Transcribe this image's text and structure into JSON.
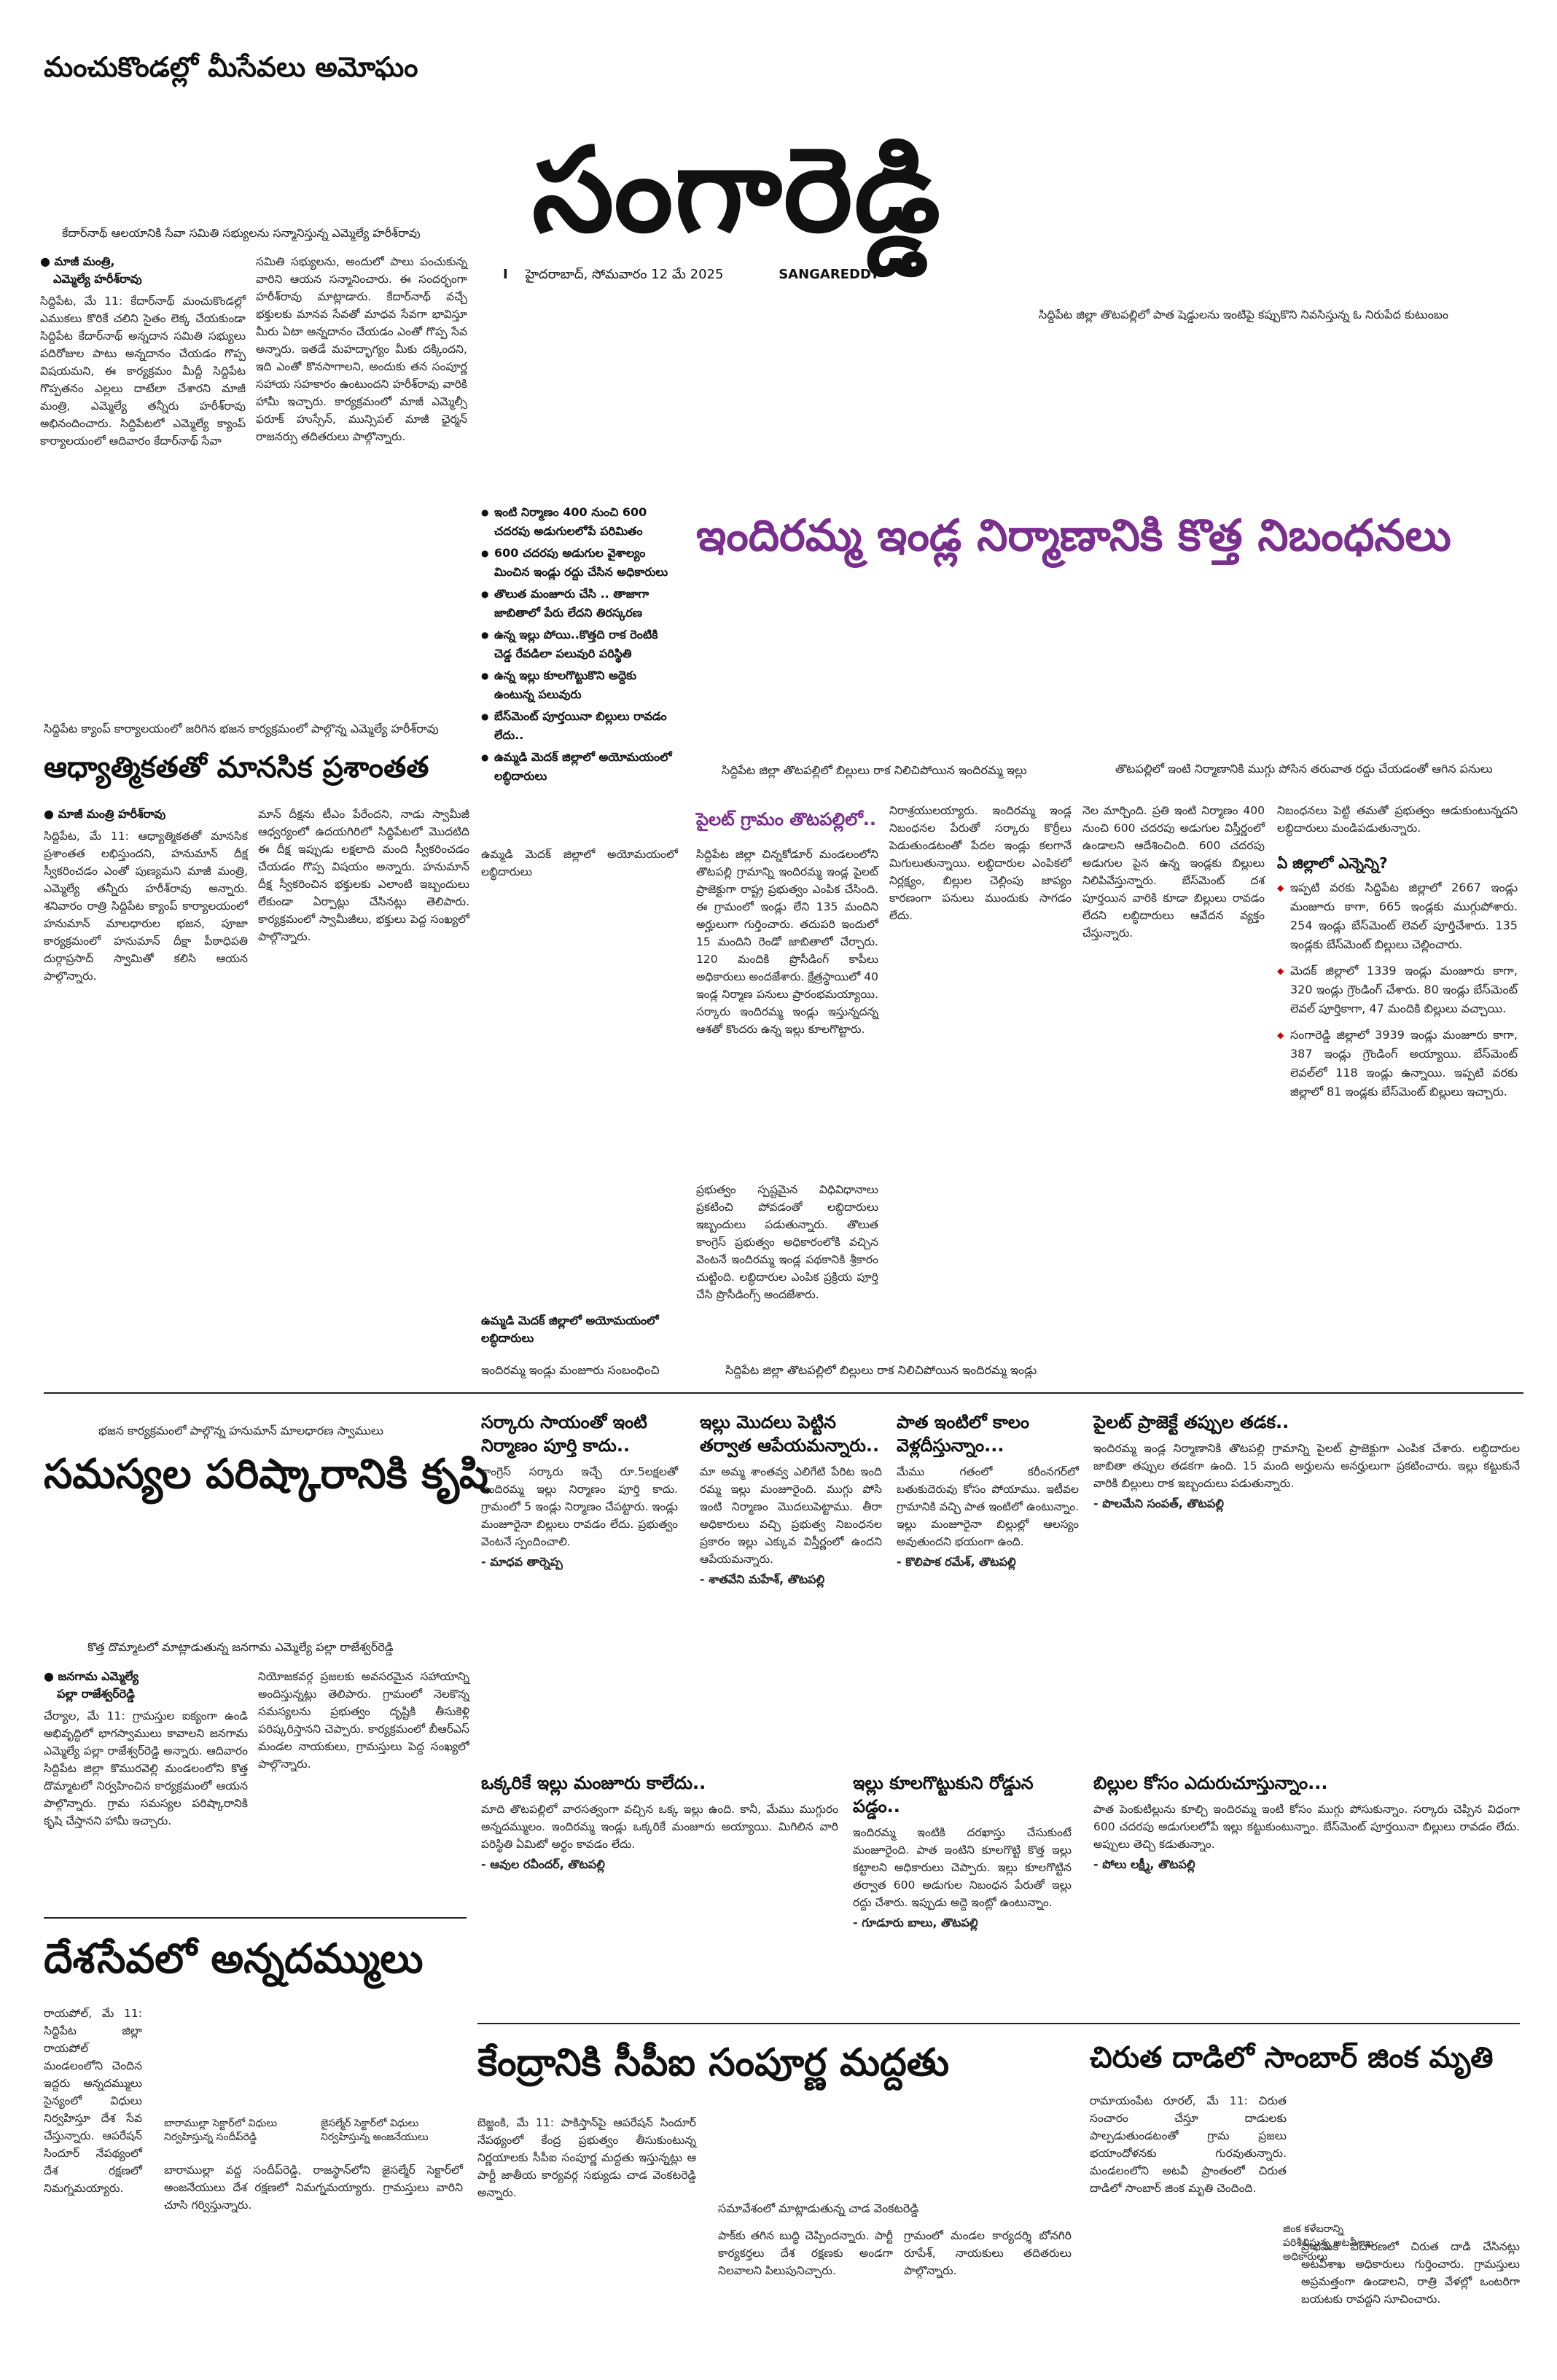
{
  "top_left_headline": "మంచుకొండల్లో మీసేవలు అమోఘం",
  "masthead": "సంగారెడ్డి",
  "dateline": {
    "marker": "I",
    "date": "హైదరాబాద్, సోమవారం 12 మే 2025",
    "edition": "SANGAREDDY"
  },
  "photo_caption_top_right": "సిద్దిపేట జిల్లా తొటపల్లిలో పాత షెడ్డులను ఇంటిపై కప్పుకొని నివసిస్తున్న ఓ నిరుపేద కుటుంబం",
  "story1": {
    "photo_caption": "కేదార్‌నాథ్ ఆలయానికి సేవా సమితి సభ్యులను సన్మానిస్తున్న ఎమ్మెల్యే హరీశ్‌రావు",
    "byline1": "మాజీ మంత్రి,",
    "byline2": "ఎమ్మెల్యే హరీశ్‌రావు",
    "col1": "సిద్దిపేట, మే 11: కేదార్‌నాథ్ మంచుకొండల్లో ఎముకలు కొరికే చలిని సైతం లెక్క చేయకుండా సిద్దిపేట కేదార్‌నాథ్ అన్నదాన సమితి సభ్యులు పదిరోజుల పాటు అన్నదానం చేయడం గొప్ప విషయమని, ఈ కార్యక్రమం మీద్దీ సిద్దిపేట గొప్పతనం ఎల్లలు దాటేలా చేశారని మాజీ మంత్రి, ఎమ్మెల్యే తన్నీరు హరీశ్‌రావు అభినందించారు. సిద్దిపేటలో ఎమ్మెల్యే క్యాంప్ కార్యాలయంలో ఆదివారం కేదార్‌నాథ్ సేవా",
    "col2": "సమితి సభ్యులను, అందులో పాలు పంచుకున్న వారిని ఆయన సన్మానించారు. ఈ సందర్భంగా హరీశ్‌రావు మాట్లాడారు. కేదార్‌నాథ్ వచ్చే భక్తులకు మానవ సేవతో మాధవ సేవగా భావిస్తూ మీరు ఏటా అన్నదానం చేయడం ఎంతో గొప్ప సేవ అన్నారు. ఇతడే మహద్భాగ్యం మీకు దక్కిందని, ఇది ఎంతో కొనసాగాలని, అందుకు తన సంపూర్ణ సహాయ సహకారం ఉంటుందని హరీశ్‌రావు వారికి హామీ ఇచ్చారు. కార్యక్రమంలో మాజీ ఎమ్మెల్సీ ఫరూక్ హుస్సేన్, మున్సిపల్ మాజీ ఛైర్మన్ రాజనర్సు తదితరులు పాల్గొన్నారు."
  },
  "main_story": {
    "headline": "ఇందిరమ్మ ఇండ్ల నిర్మాణానికి కొత్త నిబంధనలు",
    "bullets": [
      "ఇంటి నిర్మాణం 400 నుంచి 600 చదరపు అడుగులలోపే పరిమితం",
      "600 చదరపు అడుగుల వైశాల్యం మించిన ఇండ్లు రద్దు చేసిన అధికారులు",
      "తొలుత మంజూరు చేసి .. తాజాగా జాబితాలో పేరు లేదని తిరస్కరణ",
      "ఉన్న ఇల్లు పోయి..కొత్తది రాక రెంటికి చెడ్డ రేవడిలా పలువురి పరిస్థితి",
      "ఉన్న ఇల్లు కూలగొట్టుకొని అద్దెకు ఉంటున్న పలువురు",
      "బేస్‌మెంట్ పూర్తయినా బిల్లులు రావడం లేదు..",
      "ఉమ్మడి మెదక్ జిల్లాలో అయోమయంలో లబ్ధిదారులు"
    ],
    "photo1_caption": "సిద్దిపేట జిల్లా తొటపల్లిలో బిల్లులు రాక నిలిచిపోయిన ఇందిరమ్మ ఇల్లు",
    "photo2_caption": "తొటపల్లిలో ఇంటి నిర్మాణానికి ముగ్గు పోసిన తరువాత రద్దు చేయడంతో ఆగిన పనులు",
    "pilot_head": "పైలట్ గ్రామం తొటపల్లిలో..",
    "col1": "సిద్దిపేట జిల్లా చిన్నకోడూర్ మండలంలోని తొటపల్లి గ్రామాన్ని ఇందిరమ్మ ఇండ్ల పైలట్ ప్రాజెక్టుగా రాష్ట్ర ప్రభుత్వం ఎంపిక చేసింది. ఈ గ్రామంలో ఇండ్లు లేని 135 మందిని అర్హులుగా గుర్తించారు. తదుపరి ఇందులో 15 మందిని రెండో జాబితాలో చేర్చారు. 120 మందికి ప్రొసీడింగ్ కాపీలు అధికారులు అందజేశారు. క్షేత్రస్థాయిలో 40 ఇండ్ల నిర్మాణ పనులు ప్రారంభమయ్యాయి. సర్కారు ఇందిరమ్మ ఇండ్లు ఇస్తున్నదన్న ఆశతో కొందరు ఉన్న ఇల్లు కూలగొట్టారు.",
    "col2": "ప్రభుత్వం స్పష్టమైన విధివిధానాలు ప్రకటించి పోవడంతో లబ్ధిదారులు ఇబ్బందులు పడుతున్నారు. తొలుత కాంగ్రెస్ ప్రభుత్వం అధికారంలోకి వచ్చిన వెంటనే ఇందిరమ్మ ఇండ్ల పథకానికి శ్రీకారం చుట్టింది. లబ్ధిదారుల ఎంపిక ప్రక్రియ పూర్తి చేసి ప్రొసీడింగ్స్ అందజేశారు.",
    "col3": "నిరాశ్రయులయ్యారు. ఇందిరమ్మ ఇండ్ల నిబంధనల పేరుతో సర్కారు కొర్రీలు పెడుతుండటంతో పేదల ఇండ్లు కలగానే మిగులుతున్నాయి. లబ్ధిదారుల ఎంపికలో నిర్లక్ష్యం, బిల్లుల చెల్లింపు జాప్యం కారణంగా పనులు ముందుకు సాగడం లేదు.",
    "col4": "నెల మార్చింది. ప్రతి ఇంటి నిర్మాణం 400 నుంచి 600 చదరపు అడుగుల విస్తీర్ణంలో ఉండాలని ఆదేశించింది. 600 చదరపు అడుగుల పైన ఉన్న ఇండ్లకు బిల్లులు నిలిపివేస్తున్నారు. బేస్‌మెంట్ దశ పూర్తయిన వారికి కూడా బిల్లులు రావడం లేదని లబ్ధిదారులు ఆవేదన వ్యక్తం చేస్తున్నారు.",
    "col5_intro": "నిబంధనలు పెట్టి తమతో ప్రభుత్వం ఆడుకుంటున్నదని లబ్ధిదారులు మండిపడుతున్నారు.",
    "district_head": "ఏ జిల్లాలో ఎన్నెన్ని?",
    "district_items": [
      "ఇప్పటి వరకు సిద్దిపేట జిల్లాలో 2667 ఇండ్లు మంజూరు కాగా, 665 ఇండ్లకు ముగ్గుపోశారు. 254 ఇండ్లు బేస్‌మెంట్ లెవల్ పూర్తిచేశారు. 135 ఇండ్లకు బేస్‌మెంట్ బిల్లులు చెల్లించారు.",
      "మెదక్ జిల్లాలో 1339 ఇండ్లు మంజూరు కాగా, 320 ఇండ్లు గ్రౌండింగ్ చేశారు. 80 ఇండ్లు బేస్‌మెంట్ లెవల్ పూర్తికాగా, 47 మందికి బిల్లులు వచ్చాయి.",
      "సంగారెడ్డి జిల్లాలో 3939 ఇండ్లు మంజూరు కాగా, 387 ఇండ్లు గ్రౌండింగ్ అయ్యాయి. బేస్‌మెంట్ లెవల్‌లో 118 ఇండ్లు ఉన్నాయి. ఇప్పటి వరకు జిల్లాలో 81 ఇండ్లకు బేస్‌మెంట్ బిల్లులు ఇచ్చారు."
    ],
    "sub_bullet": "ఉమ్మడి మెదక్ జిల్లాలో అయోమయంలో లబ్ధిదారులు",
    "bottom_photo_caption_left": "ఇందిరమ్మ ఇండ్లు మంజూరు సంబంధించి",
    "bottom_photo_caption": "సిద్దిపేట జిల్లా తొటపల్లిలో బిల్లులు రాక నిలిచిపోయిన ఇందిరమ్మ ఇండ్లు"
  },
  "story2": {
    "photo_caption": "సిద్దిపేట క్యాంప్ కార్యాలయంలో జరిగిన భజన కార్యక్రమంలో పాల్గొన్న ఎమ్మెల్యే హరీశ్‌రావు",
    "headline": "ఆధ్యాత్మికతతో మానసిక ప్రశాంతత",
    "byline": "మాజీ మంత్రి హరీశ్‌రావు",
    "col1": "సిద్దిపేట, మే 11: ఆధ్యాత్మికతతో మానసిక ప్రశాంతత లభిస్తుందని, హనుమాన్ దీక్ష స్వీకరించడం ఎంతో పుణ్యమని మాజీ మంత్రి, ఎమ్మెల్యే తన్నీరు హరీశ్‌రావు అన్నారు. శనివారం రాత్రి సిద్దిపేట క్యాంప్ కార్యాలయంలో హనుమాన్ మాలధారుల భజన, పూజా కార్యక్రమంలో హనుమాన్ దీక్షా పీఠాధిపతి దుర్గాప్రసాద్ స్వామితో కలిసి ఆయన పాల్గొన్నారు.",
    "col2": "మాన్ దీక్షను టీఎం పేరేందని, నాడు స్వామీజీ ఆధ్వర్యంలో ఉదయగిరిలో సిద్దిపేటలో మొదటిది ఈ దీక్ష ఇప్పుడు లక్షలాది మంది స్వీకరించడం చేయడం గొప్ప విషయం అన్నారు. హనుమాన్ దీక్ష స్వీకరించిన భక్తులకు ఎలాంటి ఇబ్బందులు లేకుండా ఏర్పాట్లు చేసినట్లు తెలిపారు. కార్యక్రమంలో స్వామీజీలు, భక్తులు పెద్ద సంఖ్యలో పాల్గొన్నారు."
  },
  "story3": {
    "photo_caption": "భజన కార్యక్రమంలో పాల్గొన్న హనుమాన్ మాలధారణ స్వాములు",
    "headline": "సమస్యల పరిష్కారానికి కృషి",
    "sub_caption": "కొత్త దొమ్మాటలో మాట్లాడుతున్న జనగామ ఎమ్మెల్యే పల్లా రాజేశ్వర్‌రెడ్డి",
    "byline1": "జనగామ ఎమ్మెల్యే",
    "byline2": "పల్లా రాజేశ్వర్‌రెడ్డి",
    "col1": "చేర్యాల, మే 11: గ్రామస్తుల ఐక్యంగా ఉండి అభివృద్ధిలో భాగస్వాములు కావాలని జనగామ ఎమ్మెల్యే పల్లా రాజేశ్వర్‌రెడ్డి అన్నారు. ఆదివారం సిద్దిపేట జిల్లా కొమురవెల్లి మండలంలోని కొత్త దొమ్మాటలో నిర్వహించిన కార్యక్రమంలో ఆయన పాల్గొన్నారు. గ్రామ సమస్యల పరిష్కారానికి కృషి చేస్తానని హామీ ఇచ్చారు.",
    "col2": "నియోజకవర్గ ప్రజలకు అవసరమైన సహాయాన్ని అందిస్తున్నట్లు తెలిపారు. గ్రామంలో నెలకొన్న సమస్యలను ప్రభుత్వం దృష్టికి తీసుకెళ్లి పరిష్కరిస్తానని చెప్పారు. కార్యక్రమంలో బీఆర్ఎస్ మండల నాయకులు, గ్రామస్తులు పెద్ద సంఖ్యలో పాల్గొన్నారు."
  },
  "story4": {
    "headline": "దేశసేవలో అన్నదమ్ములు",
    "col1": "రాయపోల్, మే 11: సిద్దిపేట జిల్లా రాయపోల్ మండలంలోని చెందిన ఇద్దరు అన్నదమ్ములు సైన్యంలో విధులు నిర్వహిస్తూ దేశ సేవ చేస్తున్నారు. ఆపరేషన్ సిందూర్ నేపథ్యంలో దేశ రక్షణలో నిమగ్నమయ్యారు.",
    "caption1": "బారాముల్లా సెక్టార్‌లో విధులు నిర్వహిస్తున్న సందీప్‌రెడ్డి",
    "caption2": "జైసల్మేర్ సెక్టార్‌లో విధులు నిర్వహిస్తున్న అంజనేయులు",
    "col2": "బారాముల్లా వద్ద సందీప్‌రెడ్డి, రాజస్థాన్‌లోని జైసల్మేర్ సెక్టార్‌లో అంజనేయులు దేశ రక్షణలో నిమగ్నమయ్యారు. గ్రామస్తులు వారిని చూసి గర్విస్తున్నారు."
  },
  "reactions": [
    {
      "head": "సర్కారు సాయంతో ఇంటి నిర్మాణం పూర్తి కాదు..",
      "body": "కాంగ్రెస్ సర్కారు ఇచ్చే రూ.5లక్షలతో ఇందిరమ్మ ఇల్లు నిర్మాణం పూర్తి కాదు. గ్రామంలో 5 ఇండ్లు నిర్మాణం చేపట్టారు. ఇండ్లు మంజూరైనా బిల్లులు రావడం లేదు. ప్రభుత్వం వెంటనే స్పందించాలి.",
      "credit": "- మాధవ తార్నెప్ప"
    },
    {
      "head": "ఇల్లు మొదలు పెట్టిన తర్వాత ఆపేయమన్నారు..",
      "body": "మా అమ్మ శాంతవ్వ ఎలిగేటి పేరిట ఇంది రమ్మ ఇల్లు మంజూరైంది. ముగ్గు పోసి ఇంటి నిర్మాణం మొదలుపెట్టాము. తీరా అధికారులు వచ్చి ప్రభుత్వ నిబంధనల ప్రకారం ఇల్లు ఎక్కువ విస్తీర్ణంలో ఉందని ఆపేయమన్నారు.",
      "credit": "- శాతవేని మహేశ్, తొటపల్లి"
    },
    {
      "head": "పాత ఇంటిలో కాలం వెళ్లదీస్తున్నాం...",
      "body": "మేము గతంలో కరీంనగర్‌లో బతుకుదెరువు కోసం పోయాము. ఇటీవల గ్రామానికి వచ్చి పాత ఇంటిలో ఉంటున్నాం. ఇల్లు మంజూరైనా బిల్లుల్లో ఆలస్యం అవుతుందని భయంగా ఉంది.",
      "credit": "- కొలిపాక రమేశ్, తొటపల్లి"
    },
    {
      "head": "పైలట్ ప్రాజెక్టే తప్పుల తడక..",
      "body": "ఇందిరమ్మ ఇండ్ల నిర్మాణానికి తొటపల్లి గ్రామాన్ని పైలట్ ప్రాజెక్టుగా ఎంపిక చేశారు. లబ్ధిదారుల జాబితా తప్పుల తడకగా ఉంది. 15 మంది అర్హులను అనర్హులుగా ప్రకటించారు. ఇల్లు కట్టుకునే వారికి బిల్లులు రాక ఇబ్బందులు పడుతున్నారు.",
      "credit": "- పొలమేని సంపత్, తొటపల్లి"
    },
    {
      "head": "ఒక్కరికే ఇల్లు మంజూరు కాలేదు..",
      "body": "మాది తొటపల్లిలో వారసత్వంగా వచ్చిన ఒక్క ఇల్లు ఉంది. కానీ, మేము ముగ్గురం అన్నదమ్ములం. ఇందిరమ్మ ఇండ్లు ఒక్కరికే మంజూరు అయ్యాయి. మిగిలిన వారి పరిస్థితి ఏమిటో అర్థం కావడం లేదు.",
      "credit": "- ఆవుల రవీందర్, తొటపల్లి"
    },
    {
      "head": "ఇల్లు కూలగొట్టుకుని రోడ్డున పడ్డం..",
      "body": "ఇందిరమ్మ ఇంటికి దరఖాస్తు చేసుకుంటే మంజూరైంది. పాత ఇంటిని కూలగొట్టి కొత్త ఇల్లు కట్టాలని అధికారులు చెప్పారు. ఇల్లు కూలగొట్టిన తర్వాత 600 అడుగుల నిబంధన పేరుతో ఇల్లు రద్దు చేశారు. ఇప్పుడు అద్దె ఇంట్లో ఉంటున్నాం.",
      "credit": "- గూడూరు బాలు, తొటపల్లి"
    },
    {
      "head": "బిల్లుల కోసం ఎదురుచూస్తున్నాం...",
      "body": "పాత పెంకుటిల్లును కూల్చి ఇందిరమ్మ ఇంటి కోసం ముగ్గు పోసుకున్నాం. సర్కారు చెప్పిన విధంగా 600 చదరపు అడుగులలోపే ఇల్లు కట్టుకుంటున్నాం. బేస్‌మెంట్ పూర్తయినా బిల్లులు రావడం లేదు. అప్పులు తెచ్చి కడుతున్నాం.",
      "credit": "- పోలు లక్ష్మీ, తొటపల్లి"
    }
  ],
  "story5": {
    "headline": "కేంద్రానికి సీపీఐ సంపూర్ణ మద్దతు",
    "caption": "సమావేశంలో మాట్లాడుతున్న చాడ వెంకటరెడ్డి",
    "col1": "బెజ్జంకి, మే 11: పాకిస్తాన్‌పై ఆపరేషన్ సిందూర్ నేపథ్యంలో కేంద్ర ప్రభుత్వం తీసుకుంటున్న నిర్ణయాలకు సీపీఐ సంపూర్ణ మద్దతు ఇస్తున్నట్లు ఆ పార్టీ జాతీయ కార్యవర్గ సభ్యుడు చాడ వెంకటరెడ్డి అన్నారు.",
    "col2": "పాక్‌కు తగిన బుద్ధి చెప్పిందన్నారు. పార్టీ కార్యకర్తలు దేశ రక్షణకు అండగా నిలవాలని పిలుపునిచ్చారు.",
    "col3": "గ్రామంలో మండల కార్యదర్శి బోనగిరి రూపేశ్, నాయకులు తదితరులు పాల్గొన్నారు."
  },
  "story6": {
    "headline": "చిరుత దాడిలో సాంబార్ జింక మృతి",
    "caption": "జింక కళేబరాన్ని పరిశీలిస్తున్న అటవీశాఖ అధికారులు",
    "col1": "రామాయంపేట రూరల్, మే 11: చిరుత సంచారం చేస్తూ దాడులకు పాల్పడుతుండటంతో గ్రామ ప్రజలు భయాందోళనకు గురవుతున్నారు. మండలంలోని అటవీ ప్రాంతంలో చిరుత దాడిలో సాంబార్ జింక మృతి చెందింది.",
    "col2": "ప్రాథమిక విచారణలో చిరుత దాడి చేసినట్లు అటవీశాఖ అధికారులు గుర్తించారు. గ్రామస్తులు అప్రమత్తంగా ఉండాలని, రాత్రి వేళల్లో ఒంటరిగా బయటకు రావద్దని సూచించారు."
  }
}
